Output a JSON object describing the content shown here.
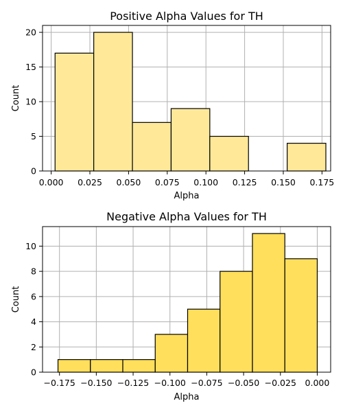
{
  "chart_data": [
    {
      "type": "bar",
      "title": "Positive Alpha Values for TH",
      "xlabel": "Alpha",
      "ylabel": "Count",
      "color": "#ffe999",
      "xlim": [
        -0.0056,
        0.1806
      ],
      "ylim": [
        0,
        21
      ],
      "xticks": [
        0.0,
        0.025,
        0.05,
        0.075,
        0.1,
        0.125,
        0.15,
        0.175
      ],
      "xtick_labels": [
        "0.000",
        "0.025",
        "0.050",
        "0.075",
        "0.100",
        "0.125",
        "0.150",
        "0.175"
      ],
      "yticks": [
        0,
        5,
        10,
        15,
        20
      ],
      "ytick_labels": [
        "0",
        "5",
        "10",
        "15",
        "20"
      ],
      "grid": true,
      "bins": [
        {
          "start": 0.0025,
          "end": 0.0275,
          "count": 17
        },
        {
          "start": 0.0275,
          "end": 0.0525,
          "count": 20
        },
        {
          "start": 0.0525,
          "end": 0.0775,
          "count": 7
        },
        {
          "start": 0.0775,
          "end": 0.1025,
          "count": 9
        },
        {
          "start": 0.1025,
          "end": 0.1275,
          "count": 5
        },
        {
          "start": 0.1275,
          "end": 0.1525,
          "count": 0
        },
        {
          "start": 0.1525,
          "end": 0.1775,
          "count": 4
        }
      ]
    },
    {
      "type": "bar",
      "title": "Negative Alpha Values for TH",
      "xlabel": "Alpha",
      "ylabel": "Count",
      "color": "#ffdf5b",
      "xlim": [
        -0.1865,
        0.0091
      ],
      "ylim": [
        0,
        11.55
      ],
      "xticks": [
        -0.175,
        -0.15,
        -0.125,
        -0.1,
        -0.075,
        -0.05,
        -0.025,
        0.0
      ],
      "xtick_labels": [
        "−0.175",
        "−0.150",
        "−0.125",
        "−0.100",
        "−0.075",
        "−0.050",
        "−0.025",
        "0.000"
      ],
      "yticks": [
        0,
        2,
        4,
        6,
        8,
        10
      ],
      "ytick_labels": [
        "0",
        "2",
        "4",
        "6",
        "8",
        "10"
      ],
      "grid": true,
      "bins": [
        {
          "start": -0.176,
          "end": -0.154,
          "count": 1
        },
        {
          "start": -0.154,
          "end": -0.132,
          "count": 1
        },
        {
          "start": -0.132,
          "end": -0.11,
          "count": 1
        },
        {
          "start": -0.11,
          "end": -0.088,
          "count": 3
        },
        {
          "start": -0.088,
          "end": -0.066,
          "count": 5
        },
        {
          "start": -0.066,
          "end": -0.044,
          "count": 8
        },
        {
          "start": -0.044,
          "end": -0.022,
          "count": 11
        },
        {
          "start": -0.022,
          "end": 0.0,
          "count": 9
        }
      ]
    }
  ]
}
